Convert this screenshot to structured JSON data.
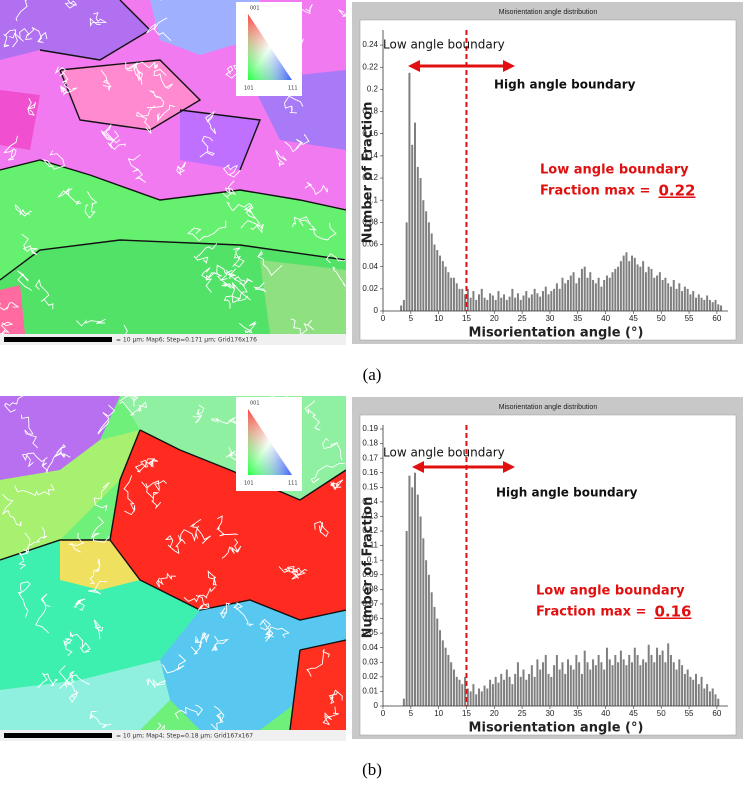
{
  "chart_data": [
    {
      "type": "histogram",
      "title": "Misorientation angle distribution",
      "x_label": "Misorientation angle (°)",
      "y_label": "Number of Fraction",
      "color": "#7f7f7f",
      "xlim": [
        0,
        62
      ],
      "ylim": [
        0,
        0.25
      ],
      "xticks": [
        0,
        5,
        10,
        15,
        20,
        25,
        30,
        35,
        40,
        45,
        50,
        55,
        60
      ],
      "yticks": [
        0,
        0.02,
        0.04,
        0.06,
        0.08,
        0.1,
        0.12,
        0.14,
        0.16,
        0.18,
        0.2,
        0.22,
        0.24
      ],
      "boundary_angle": 15,
      "annotations": {
        "low": "Low angle boundary",
        "high": "High angle boundary",
        "note": "Low angle boundary",
        "max_label": "Fraction max =",
        "max_value": 0.22
      },
      "bins": [
        2,
        2.5,
        3,
        3.5,
        4,
        4.5,
        5,
        5.5,
        6,
        6.5,
        7,
        7.5,
        8,
        8.5,
        9,
        9.5,
        10,
        10.5,
        11,
        11.5,
        12,
        12.5,
        13,
        13.5,
        14,
        14.5,
        15,
        15.5,
        16,
        16.5,
        17,
        17.5,
        18,
        18.5,
        19,
        19.5,
        20,
        20.5,
        21,
        21.5,
        22,
        22.5,
        23,
        23.5,
        24,
        24.5,
        25,
        25.5,
        26,
        26.5,
        27,
        27.5,
        28,
        28.5,
        29,
        29.5,
        30,
        30.5,
        31,
        31.5,
        32,
        32.5,
        33,
        33.5,
        34,
        34.5,
        35,
        35.5,
        36,
        36.5,
        37,
        37.5,
        38,
        38.5,
        39,
        39.5,
        40,
        40.5,
        41,
        41.5,
        42,
        42.5,
        43,
        43.5,
        44,
        44.5,
        45,
        45.5,
        46,
        46.5,
        47,
        47.5,
        48,
        48.5,
        49,
        49.5,
        50,
        50.5,
        51,
        51.5,
        52,
        52.5,
        53,
        53.5,
        54,
        54.5,
        55,
        55.5,
        56,
        56.5,
        57,
        57.5,
        58,
        58.5,
        59,
        59.5,
        60,
        60.5,
        61,
        61.5,
        62
      ],
      "values": [
        0,
        0,
        0.005,
        0.01,
        0.08,
        0.215,
        0.15,
        0.17,
        0.13,
        0.12,
        0.1,
        0.09,
        0.08,
        0.07,
        0.06,
        0.055,
        0.05,
        0.045,
        0.04,
        0.035,
        0.03,
        0.03,
        0.025,
        0.02,
        0.02,
        0.015,
        0.02,
        0.012,
        0.018,
        0.01,
        0.015,
        0.02,
        0.012,
        0.01,
        0.016,
        0.014,
        0.01,
        0.018,
        0.012,
        0.015,
        0.01,
        0.013,
        0.02,
        0.012,
        0.016,
        0.01,
        0.014,
        0.018,
        0.012,
        0.015,
        0.02,
        0.016,
        0.013,
        0.018,
        0.022,
        0.015,
        0.018,
        0.02,
        0.025,
        0.02,
        0.03,
        0.025,
        0.028,
        0.032,
        0.035,
        0.025,
        0.03,
        0.038,
        0.04,
        0.03,
        0.035,
        0.028,
        0.025,
        0.03,
        0.022,
        0.028,
        0.032,
        0.03,
        0.035,
        0.038,
        0.04,
        0.045,
        0.05,
        0.053,
        0.045,
        0.05,
        0.048,
        0.042,
        0.04,
        0.045,
        0.035,
        0.04,
        0.038,
        0.03,
        0.032,
        0.035,
        0.028,
        0.03,
        0.025,
        0.022,
        0.028,
        0.02,
        0.025,
        0.018,
        0.022,
        0.02,
        0.015,
        0.018,
        0.012,
        0.015,
        0.012,
        0.01,
        0.014,
        0.01,
        0.008,
        0.01,
        0.006,
        0.005,
        0,
        0
      ]
    },
    {
      "type": "histogram",
      "title": "Misorientation angle distribution",
      "x_label": "Misorientation angle (°)",
      "y_label": "Number of Fraction",
      "color": "#7f7f7f",
      "xlim": [
        0,
        62
      ],
      "ylim": [
        0,
        0.19
      ],
      "xticks": [
        0,
        5,
        10,
        15,
        20,
        25,
        30,
        35,
        40,
        45,
        50,
        55,
        60
      ],
      "yticks": [
        0,
        0.01,
        0.02,
        0.03,
        0.04,
        0.05,
        0.06,
        0.07,
        0.08,
        0.09,
        0.1,
        0.11,
        0.12,
        0.13,
        0.14,
        0.15,
        0.16,
        0.17,
        0.18,
        0.19
      ],
      "boundary_angle": 15,
      "annotations": {
        "low": "Low angle boundary",
        "high": "High angle boundary",
        "note": "Low angle boundary",
        "max_label": "Fraction max =",
        "max_value": 0.16
      },
      "bins": [
        2,
        2.5,
        3,
        3.5,
        4,
        4.5,
        5,
        5.5,
        6,
        6.5,
        7,
        7.5,
        8,
        8.5,
        9,
        9.5,
        10,
        10.5,
        11,
        11.5,
        12,
        12.5,
        13,
        13.5,
        14,
        14.5,
        15,
        15.5,
        16,
        16.5,
        17,
        17.5,
        18,
        18.5,
        19,
        19.5,
        20,
        20.5,
        21,
        21.5,
        22,
        22.5,
        23,
        23.5,
        24,
        24.5,
        25,
        25.5,
        26,
        26.5,
        27,
        27.5,
        28,
        28.5,
        29,
        29.5,
        30,
        30.5,
        31,
        31.5,
        32,
        32.5,
        33,
        33.5,
        34,
        34.5,
        35,
        35.5,
        36,
        36.5,
        37,
        37.5,
        38,
        38.5,
        39,
        39.5,
        40,
        40.5,
        41,
        41.5,
        42,
        42.5,
        43,
        43.5,
        44,
        44.5,
        45,
        45.5,
        46,
        46.5,
        47,
        47.5,
        48,
        48.5,
        49,
        49.5,
        50,
        50.5,
        51,
        51.5,
        52,
        52.5,
        53,
        53.5,
        54,
        54.5,
        55,
        55.5,
        56,
        56.5,
        57,
        57.5,
        58,
        58.5,
        59,
        59.5,
        60,
        60.5,
        61,
        61.5,
        62
      ],
      "values": [
        0,
        0,
        0,
        0.005,
        0.12,
        0.158,
        0.15,
        0.16,
        0.145,
        0.13,
        0.115,
        0.1,
        0.09,
        0.078,
        0.068,
        0.06,
        0.052,
        0.045,
        0.04,
        0.035,
        0.03,
        0.025,
        0.02,
        0.018,
        0.015,
        0.02,
        0.012,
        0.01,
        0.015,
        0.008,
        0.012,
        0.01,
        0.014,
        0.012,
        0.018,
        0.015,
        0.02,
        0.016,
        0.022,
        0.018,
        0.025,
        0.02,
        0.015,
        0.022,
        0.03,
        0.02,
        0.025,
        0.018,
        0.022,
        0.028,
        0.02,
        0.032,
        0.025,
        0.03,
        0.035,
        0.022,
        0.02,
        0.028,
        0.035,
        0.025,
        0.03,
        0.022,
        0.032,
        0.028,
        0.025,
        0.035,
        0.03,
        0.022,
        0.038,
        0.03,
        0.025,
        0.032,
        0.028,
        0.035,
        0.03,
        0.025,
        0.04,
        0.032,
        0.028,
        0.035,
        0.03,
        0.038,
        0.032,
        0.028,
        0.035,
        0.03,
        0.04,
        0.035,
        0.028,
        0.032,
        0.03,
        0.042,
        0.035,
        0.03,
        0.04,
        0.035,
        0.038,
        0.03,
        0.043,
        0.035,
        0.03,
        0.025,
        0.032,
        0.028,
        0.022,
        0.025,
        0.02,
        0.018,
        0.022,
        0.015,
        0.02,
        0.012,
        0.015,
        0.01,
        0.012,
        0.008,
        0.005,
        0,
        0,
        0
      ]
    }
  ],
  "panels": [
    {
      "map_caption": "= 10 µm; Map6; Step=0.171 µm; Grid176x176",
      "ipf_labels": [
        "001",
        "101",
        "111"
      ],
      "caption": "(a)"
    },
    {
      "map_caption": "= 10 µm; Map4; Step=0.18 µm; Grid167x167",
      "ipf_labels": [
        "001",
        "101",
        "111"
      ],
      "caption": "(b)"
    }
  ]
}
